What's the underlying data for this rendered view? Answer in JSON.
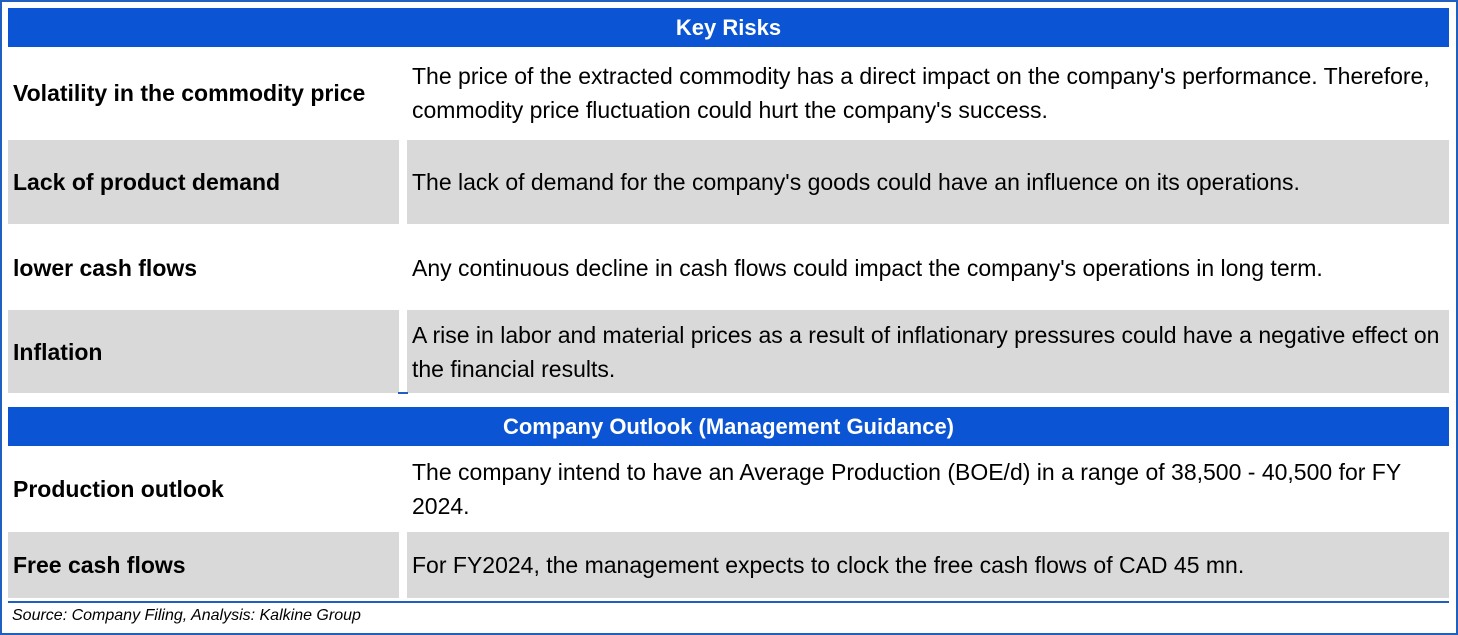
{
  "key_risks": {
    "title": "Key Risks",
    "rows": [
      {
        "label": "Volatility in the commodity price",
        "text": "The price of the extracted commodity has a direct impact on the company's performance. Therefore, commodity price fluctuation could hurt the company's success."
      },
      {
        "label": "Lack of product demand",
        "text": "The lack of demand for the company's goods could have an influence on its operations."
      },
      {
        "label": "lower cash flows",
        "text": "Any continuous decline in cash flows could impact the company's operations in long term."
      },
      {
        "label": "Inflation",
        "text": "A rise in labor and material prices as a result of inflationary pressures could have a negative effect on the financial results."
      }
    ]
  },
  "outlook": {
    "title": "Company Outlook (Management Guidance)",
    "rows": [
      {
        "label": "Production outlook",
        "text": "The company intend to have an Average Production (BOE/d) in a range of 38,500 - 40,500 for FY 2024."
      },
      {
        "label": "Free cash flows",
        "text": "For FY2024, the management expects to clock the free cash flows of CAD 45 mn."
      }
    ]
  },
  "source": "Source: Company Filing, Analysis: Kalkine Group",
  "colors": {
    "header": "#0b55d4",
    "shade": "#d9d9d9",
    "border": "#1f5fbf"
  }
}
